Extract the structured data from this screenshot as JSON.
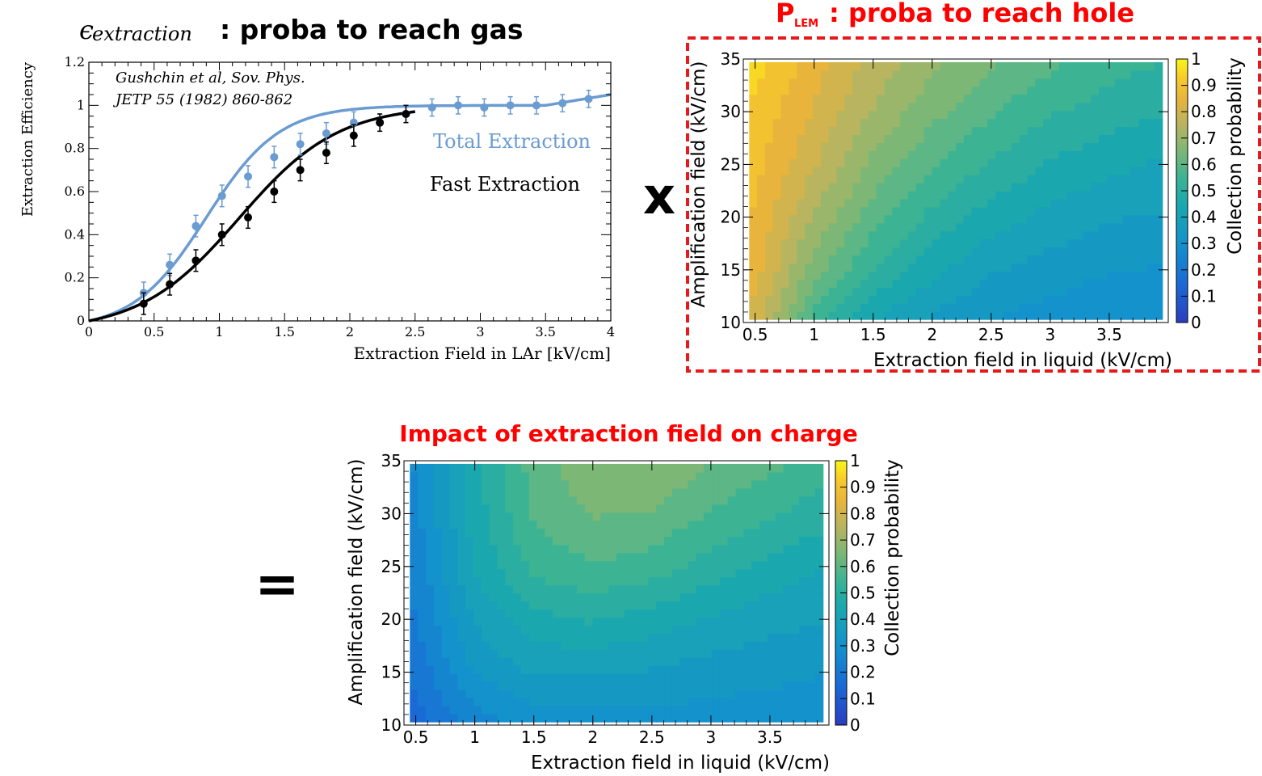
{
  "titles": {
    "top_left_symbol": "ϵ",
    "top_left_subscript": "extraction",
    "top_left_rest": ": proba to reach gas",
    "top_right_main": "P",
    "top_right_sub": "LEM",
    "top_right_rest": ": proba to reach hole",
    "bottom": "Impact of extraction field on charge"
  },
  "operators": {
    "times": "x",
    "equals": "="
  },
  "colors": {
    "total": "#6a9bd1",
    "fast": "#000000",
    "title_red": "#ff0000",
    "frame_red": "#e8191a"
  },
  "chart_data": [
    {
      "type": "line",
      "title": "",
      "xlabel": "Extraction Field in LAr [kV/cm]",
      "ylabel": "Extraction Efficiency",
      "xlim": [
        0,
        4
      ],
      "ylim": [
        0,
        1.2
      ],
      "x_ticks": [
        "0",
        "0.5",
        "1",
        "1.5",
        "2",
        "2.5",
        "3",
        "3.5",
        "4"
      ],
      "y_ticks": [
        "0",
        "0.2",
        "0.4",
        "0.6",
        "0.8",
        "1",
        "1.2"
      ],
      "annotation_line1": "Gushchin et al, Sov. Phys.",
      "annotation_line2": "JETP 55 (1982) 860-862",
      "legend": "right",
      "series": [
        {
          "name": "Total Extraction",
          "x": [
            0.42,
            0.62,
            0.82,
            1.02,
            1.22,
            1.42,
            1.62,
            1.82,
            2.03,
            2.23,
            2.43,
            2.63,
            2.83,
            3.03,
            3.23,
            3.43,
            3.63,
            3.83
          ],
          "y": [
            0.13,
            0.26,
            0.44,
            0.58,
            0.67,
            0.76,
            0.82,
            0.87,
            0.92,
            0.92,
            0.96,
            0.99,
            1.0,
            0.99,
            1.0,
            1.0,
            1.01,
            1.03
          ],
          "err": [
            0.05,
            0.05,
            0.05,
            0.05,
            0.05,
            0.05,
            0.05,
            0.05,
            0.05,
            0.04,
            0.04,
            0.04,
            0.04,
            0.04,
            0.04,
            0.04,
            0.04,
            0.04
          ]
        },
        {
          "name": "Fast Extraction",
          "x": [
            0.42,
            0.62,
            0.82,
            1.02,
            1.22,
            1.42,
            1.62,
            1.82,
            2.03,
            2.23,
            2.43
          ],
          "y": [
            0.08,
            0.17,
            0.28,
            0.4,
            0.48,
            0.6,
            0.7,
            0.78,
            0.86,
            0.92,
            0.96
          ],
          "err": [
            0.05,
            0.05,
            0.05,
            0.05,
            0.05,
            0.05,
            0.05,
            0.05,
            0.05,
            0.04,
            0.04
          ]
        }
      ]
    },
    {
      "type": "heatmap",
      "title": "",
      "xlabel": "Extraction field in liquid (kV/cm)",
      "ylabel": "Amplification field (kV/cm)",
      "zlabel": "Collection probability",
      "xlim": [
        0.4,
        4.0
      ],
      "ylim": [
        10,
        35
      ],
      "zlim": [
        0,
        1
      ],
      "x_ticks": [
        "0.5",
        "1",
        "1.5",
        "2",
        "2.5",
        "3",
        "3.5"
      ],
      "y_ticks": [
        "10",
        "15",
        "20",
        "25",
        "30",
        "35"
      ],
      "z_ticks": [
        "0",
        "0.1",
        "0.2",
        "0.3",
        "0.4",
        "0.5",
        "0.6",
        "0.7",
        "0.8",
        "0.9",
        "1"
      ],
      "x": [
        0.5,
        1.0,
        1.5,
        2.0,
        2.5,
        3.0,
        3.5,
        3.9
      ],
      "y": [
        10,
        15,
        20,
        25,
        30,
        35
      ],
      "z": [
        [
          0.8,
          0.55,
          0.42,
          0.36,
          0.32,
          0.3,
          0.28,
          0.27
        ],
        [
          0.85,
          0.65,
          0.52,
          0.44,
          0.38,
          0.35,
          0.33,
          0.32
        ],
        [
          0.87,
          0.72,
          0.6,
          0.51,
          0.45,
          0.41,
          0.38,
          0.37
        ],
        [
          0.89,
          0.78,
          0.66,
          0.58,
          0.52,
          0.47,
          0.44,
          0.42
        ],
        [
          0.91,
          0.82,
          0.72,
          0.64,
          0.58,
          0.53,
          0.5,
          0.48
        ],
        [
          0.95,
          0.85,
          0.76,
          0.69,
          0.64,
          0.59,
          0.55,
          0.53
        ]
      ]
    },
    {
      "type": "heatmap",
      "title": "Impact of extraction field on charge",
      "xlabel": "Extraction field in liquid (kV/cm)",
      "ylabel": "Amplification field (kV/cm)",
      "zlabel": "Collection probability",
      "xlim": [
        0.4,
        4.0
      ],
      "ylim": [
        10,
        35
      ],
      "zlim": [
        0,
        1
      ],
      "x_ticks": [
        "0.5",
        "1",
        "1.5",
        "2",
        "2.5",
        "3",
        "3.5"
      ],
      "y_ticks": [
        "10",
        "15",
        "20",
        "25",
        "30",
        "35"
      ],
      "z_ticks": [
        "0",
        "0.1",
        "0.2",
        "0.3",
        "0.4",
        "0.5",
        "0.6",
        "0.7",
        "0.8",
        "0.9",
        "1"
      ],
      "x": [
        0.5,
        1.0,
        1.5,
        2.0,
        2.5,
        3.0,
        3.5,
        3.9
      ],
      "y": [
        10,
        15,
        20,
        25,
        30,
        35
      ],
      "z": [
        [
          0.15,
          0.25,
          0.29,
          0.3,
          0.3,
          0.3,
          0.29,
          0.28
        ],
        [
          0.19,
          0.33,
          0.38,
          0.38,
          0.37,
          0.35,
          0.34,
          0.33
        ],
        [
          0.22,
          0.38,
          0.46,
          0.48,
          0.45,
          0.42,
          0.39,
          0.38
        ],
        [
          0.24,
          0.43,
          0.54,
          0.57,
          0.55,
          0.5,
          0.46,
          0.43
        ],
        [
          0.26,
          0.45,
          0.58,
          0.63,
          0.62,
          0.57,
          0.53,
          0.5
        ],
        [
          0.28,
          0.46,
          0.6,
          0.67,
          0.68,
          0.63,
          0.59,
          0.56
        ]
      ]
    }
  ]
}
